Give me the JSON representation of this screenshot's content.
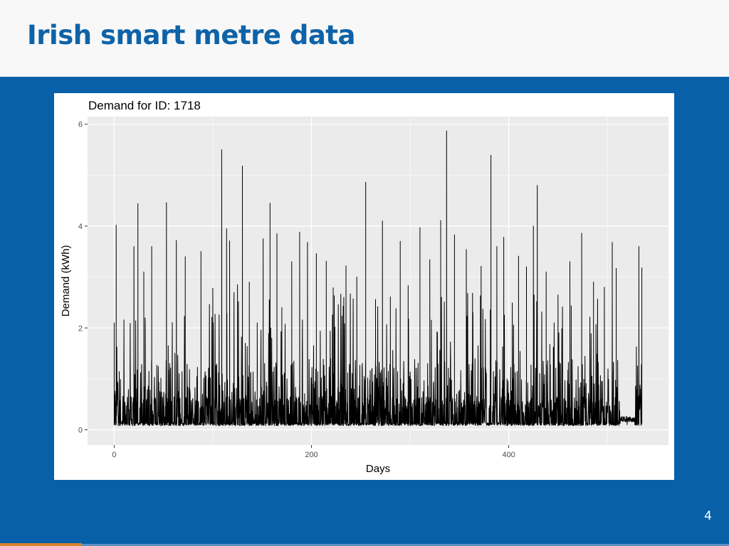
{
  "slide": {
    "title": "Irish smart metre data",
    "page_number": "4"
  },
  "chart_data": {
    "type": "line",
    "title": "Demand for ID: 1718",
    "xlabel": "Days",
    "ylabel": "Demand (kWh)",
    "xlim": [
      -27,
      562
    ],
    "ylim": [
      -0.3,
      6.15
    ],
    "x_ticks": [
      0,
      200,
      400
    ],
    "y_ticks": [
      0,
      2,
      4,
      6
    ],
    "grid": true,
    "legend": "none",
    "background": "#ebebeb",
    "line_color": "#000000",
    "peaks": [
      {
        "x": 0,
        "y": 2.1
      },
      {
        "x": 2,
        "y": 4.02
      },
      {
        "x": 20,
        "y": 3.6
      },
      {
        "x": 24,
        "y": 4.44
      },
      {
        "x": 30,
        "y": 3.1
      },
      {
        "x": 38,
        "y": 3.6
      },
      {
        "x": 53,
        "y": 4.46
      },
      {
        "x": 63,
        "y": 3.72
      },
      {
        "x": 72,
        "y": 3.4
      },
      {
        "x": 88,
        "y": 3.5
      },
      {
        "x": 100,
        "y": 2.78
      },
      {
        "x": 109,
        "y": 5.5
      },
      {
        "x": 114,
        "y": 3.95
      },
      {
        "x": 117,
        "y": 3.71
      },
      {
        "x": 125,
        "y": 2.85
      },
      {
        "x": 130,
        "y": 5.18
      },
      {
        "x": 137,
        "y": 2.9
      },
      {
        "x": 145,
        "y": 2.1
      },
      {
        "x": 151,
        "y": 3.75
      },
      {
        "x": 158,
        "y": 4.45
      },
      {
        "x": 165,
        "y": 3.85
      },
      {
        "x": 170,
        "y": 2.4
      },
      {
        "x": 180,
        "y": 3.3
      },
      {
        "x": 188,
        "y": 3.88
      },
      {
        "x": 196,
        "y": 3.68
      },
      {
        "x": 205,
        "y": 3.46
      },
      {
        "x": 215,
        "y": 3.31
      },
      {
        "x": 222,
        "y": 2.79
      },
      {
        "x": 235,
        "y": 3.22
      },
      {
        "x": 246,
        "y": 3.0
      },
      {
        "x": 255,
        "y": 4.86
      },
      {
        "x": 265,
        "y": 2.56
      },
      {
        "x": 272,
        "y": 4.1
      },
      {
        "x": 280,
        "y": 2.61
      },
      {
        "x": 290,
        "y": 3.7
      },
      {
        "x": 298,
        "y": 2.83
      },
      {
        "x": 310,
        "y": 3.97
      },
      {
        "x": 320,
        "y": 3.34
      },
      {
        "x": 331,
        "y": 4.11
      },
      {
        "x": 337,
        "y": 5.87
      },
      {
        "x": 345,
        "y": 3.83
      },
      {
        "x": 357,
        "y": 3.54
      },
      {
        "x": 372,
        "y": 3.21
      },
      {
        "x": 382,
        "y": 5.39
      },
      {
        "x": 388,
        "y": 3.6
      },
      {
        "x": 395,
        "y": 3.78
      },
      {
        "x": 410,
        "y": 3.41
      },
      {
        "x": 418,
        "y": 3.2
      },
      {
        "x": 425,
        "y": 4.0
      },
      {
        "x": 429,
        "y": 4.8
      },
      {
        "x": 438,
        "y": 3.1
      },
      {
        "x": 450,
        "y": 2.65
      },
      {
        "x": 462,
        "y": 3.3
      },
      {
        "x": 474,
        "y": 3.86
      },
      {
        "x": 486,
        "y": 2.9
      },
      {
        "x": 497,
        "y": 2.8
      },
      {
        "x": 505,
        "y": 3.68
      },
      {
        "x": 509,
        "y": 3.17
      },
      {
        "x": 520,
        "y": 0.25
      },
      {
        "x": 532,
        "y": 3.6
      },
      {
        "x": 535,
        "y": 3.18
      }
    ]
  }
}
